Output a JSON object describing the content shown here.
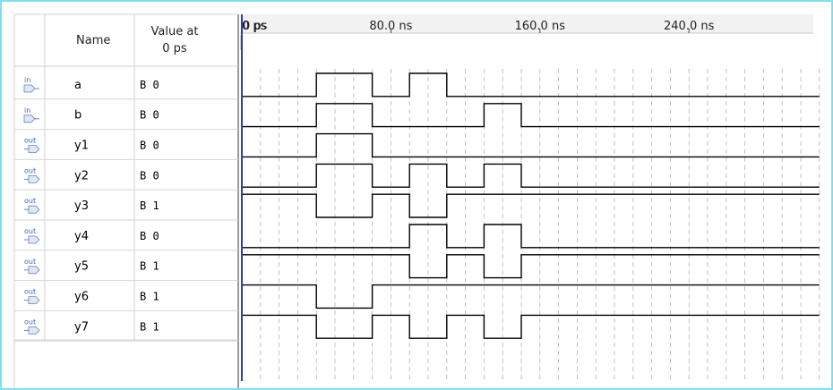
{
  "header": {
    "name_label": "Name",
    "value_label_line1": "Value at",
    "value_label_line2": "0 ps",
    "cursor_label": "0 ps",
    "timeline_labels": [
      "0 ps",
      "80.0 ns",
      "160.0 ns",
      "240.0 ns"
    ]
  },
  "timeline": {
    "t_max_ns": 310,
    "grid_step_ns": 10
  },
  "colors": {
    "border": "#7fdfef",
    "cursor": "#2a3fbf",
    "grid": "#b5b5b5"
  },
  "signals": [
    {
      "dir": "in",
      "icon": "input-pin-icon",
      "name": "a",
      "value": "B 0",
      "transitions": [
        [
          0,
          0
        ],
        [
          40,
          1
        ],
        [
          70,
          0
        ],
        [
          90,
          1
        ],
        [
          110,
          0
        ]
      ]
    },
    {
      "dir": "in",
      "icon": "input-pin-icon",
      "name": "b",
      "value": "B 0",
      "transitions": [
        [
          0,
          0
        ],
        [
          40,
          1
        ],
        [
          70,
          0
        ],
        [
          130,
          1
        ],
        [
          150,
          0
        ]
      ]
    },
    {
      "dir": "out",
      "icon": "output-pin-icon",
      "name": "y1",
      "value": "B 0",
      "transitions": [
        [
          0,
          0
        ],
        [
          40,
          1
        ],
        [
          70,
          0
        ]
      ]
    },
    {
      "dir": "out",
      "icon": "output-pin-icon",
      "name": "y2",
      "value": "B 0",
      "transitions": [
        [
          0,
          0
        ],
        [
          40,
          1
        ],
        [
          70,
          0
        ],
        [
          90,
          1
        ],
        [
          110,
          0
        ],
        [
          130,
          1
        ],
        [
          150,
          0
        ]
      ]
    },
    {
      "dir": "out",
      "icon": "output-pin-icon",
      "name": "y3",
      "value": "B 1",
      "transitions": [
        [
          0,
          1
        ],
        [
          40,
          0
        ],
        [
          70,
          1
        ],
        [
          90,
          0
        ],
        [
          110,
          1
        ]
      ]
    },
    {
      "dir": "out",
      "icon": "output-pin-icon",
      "name": "y4",
      "value": "B 0",
      "transitions": [
        [
          0,
          0
        ],
        [
          90,
          1
        ],
        [
          110,
          0
        ],
        [
          130,
          1
        ],
        [
          150,
          0
        ]
      ]
    },
    {
      "dir": "out",
      "icon": "output-pin-icon",
      "name": "y5",
      "value": "B 1",
      "transitions": [
        [
          0,
          1
        ],
        [
          90,
          0
        ],
        [
          110,
          1
        ],
        [
          130,
          0
        ],
        [
          150,
          1
        ]
      ]
    },
    {
      "dir": "out",
      "icon": "output-pin-icon",
      "name": "y6",
      "value": "B 1",
      "transitions": [
        [
          0,
          1
        ],
        [
          40,
          0
        ],
        [
          70,
          1
        ]
      ]
    },
    {
      "dir": "out",
      "icon": "output-pin-icon",
      "name": "y7",
      "value": "B 1",
      "transitions": [
        [
          0,
          1
        ],
        [
          40,
          0
        ],
        [
          70,
          1
        ],
        [
          90,
          0
        ],
        [
          110,
          1
        ],
        [
          130,
          0
        ],
        [
          150,
          1
        ]
      ]
    }
  ]
}
